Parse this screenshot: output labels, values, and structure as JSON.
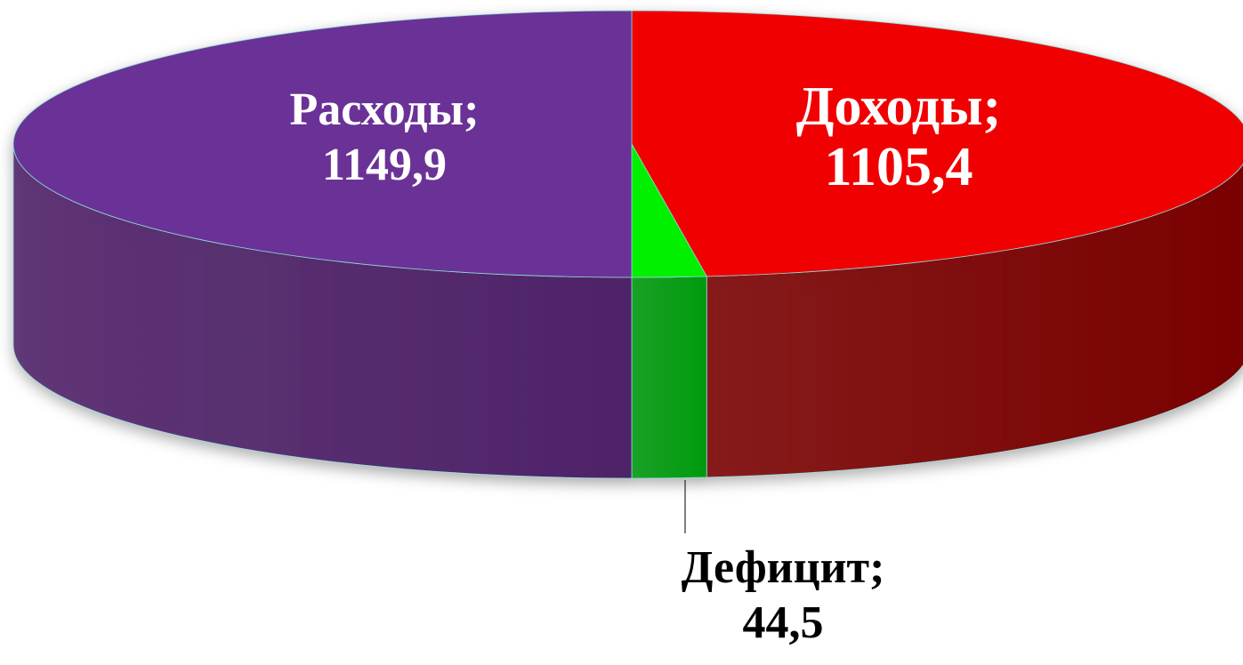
{
  "chart_data": {
    "type": "pie3d",
    "categories": [
      "Доходы",
      "Дефицит",
      "Расходы"
    ],
    "values": [
      1105.4,
      44.5,
      1149.9
    ],
    "value_labels": [
      "1105,4",
      "44,5",
      "1149,9"
    ],
    "label_separator": ";",
    "colors": [
      "#f00000",
      "#00f000",
      "#6a3296"
    ],
    "side_colors": [
      "#7a0000",
      "#009a10",
      "#4e2168"
    ]
  }
}
